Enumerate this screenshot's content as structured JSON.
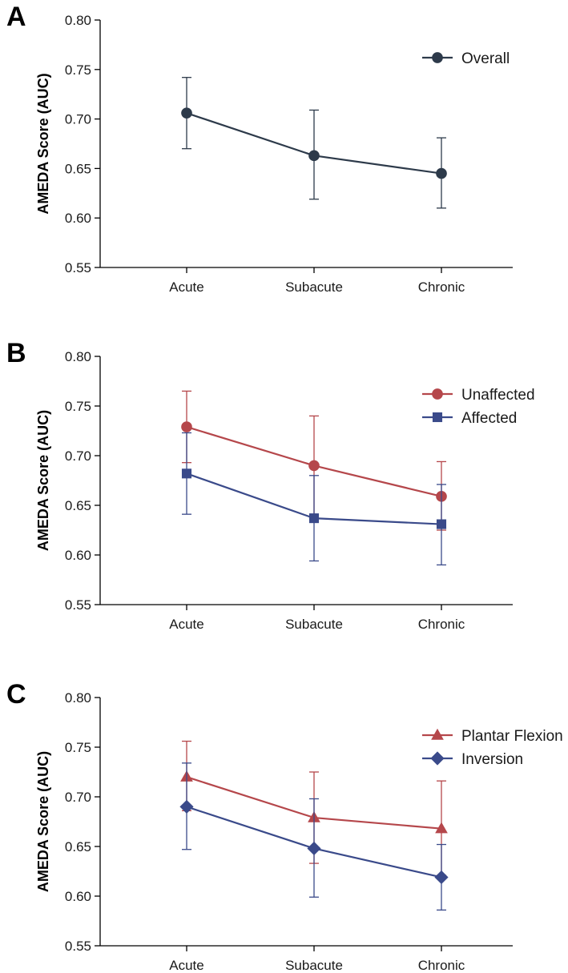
{
  "chart_data": [
    {
      "panel": "A",
      "type": "line",
      "title": "",
      "xlabel": "",
      "ylabel": "AMEDA Score (AUC)",
      "categories": [
        "Acute",
        "Subacute",
        "Chronic"
      ],
      "ylim": [
        0.55,
        0.8
      ],
      "yticks": [
        "0.55",
        "0.60",
        "0.65",
        "0.70",
        "0.75",
        "0.80"
      ],
      "legend_position": "top-right",
      "series": [
        {
          "name": "Overall",
          "marker": "circle",
          "color": "#2d3a4a",
          "values": [
            0.706,
            0.663,
            0.645
          ],
          "err_low": [
            0.67,
            0.619,
            0.61
          ],
          "err_high": [
            0.742,
            0.709,
            0.681
          ]
        }
      ]
    },
    {
      "panel": "B",
      "type": "line",
      "title": "",
      "xlabel": "",
      "ylabel": "AMEDA Score (AUC)",
      "categories": [
        "Acute",
        "Subacute",
        "Chronic"
      ],
      "ylim": [
        0.55,
        0.8
      ],
      "yticks": [
        "0.55",
        "0.60",
        "0.65",
        "0.70",
        "0.75",
        "0.80"
      ],
      "legend_position": "top-right",
      "series": [
        {
          "name": "Unaffected",
          "marker": "circle",
          "color": "#b5474b",
          "values": [
            0.729,
            0.69,
            0.659
          ],
          "err_low": [
            0.693,
            0.64,
            0.625
          ],
          "err_high": [
            0.765,
            0.74,
            0.694
          ]
        },
        {
          "name": "Affected",
          "marker": "square",
          "color": "#3a4a8a",
          "values": [
            0.682,
            0.637,
            0.631
          ],
          "err_low": [
            0.641,
            0.594,
            0.59
          ],
          "err_high": [
            0.723,
            0.68,
            0.671
          ]
        }
      ]
    },
    {
      "panel": "C",
      "type": "line",
      "title": "",
      "xlabel": "",
      "ylabel": "AMEDA Score (AUC)",
      "categories": [
        "Acute",
        "Subacute",
        "Chronic"
      ],
      "ylim": [
        0.55,
        0.8
      ],
      "yticks": [
        "0.55",
        "0.60",
        "0.65",
        "0.70",
        "0.75",
        "0.80"
      ],
      "legend_position": "top-right",
      "series": [
        {
          "name": "Plantar Flexion",
          "marker": "triangle",
          "color": "#b5474b",
          "values": [
            0.72,
            0.679,
            0.668
          ],
          "err_low": [
            0.686,
            0.633,
            0.621
          ],
          "err_high": [
            0.756,
            0.725,
            0.716
          ]
        },
        {
          "name": "Inversion",
          "marker": "diamond",
          "color": "#3a4a8a",
          "values": [
            0.69,
            0.648,
            0.619
          ],
          "err_low": [
            0.647,
            0.599,
            0.586
          ],
          "err_high": [
            0.734,
            0.698,
            0.652
          ]
        }
      ]
    }
  ]
}
